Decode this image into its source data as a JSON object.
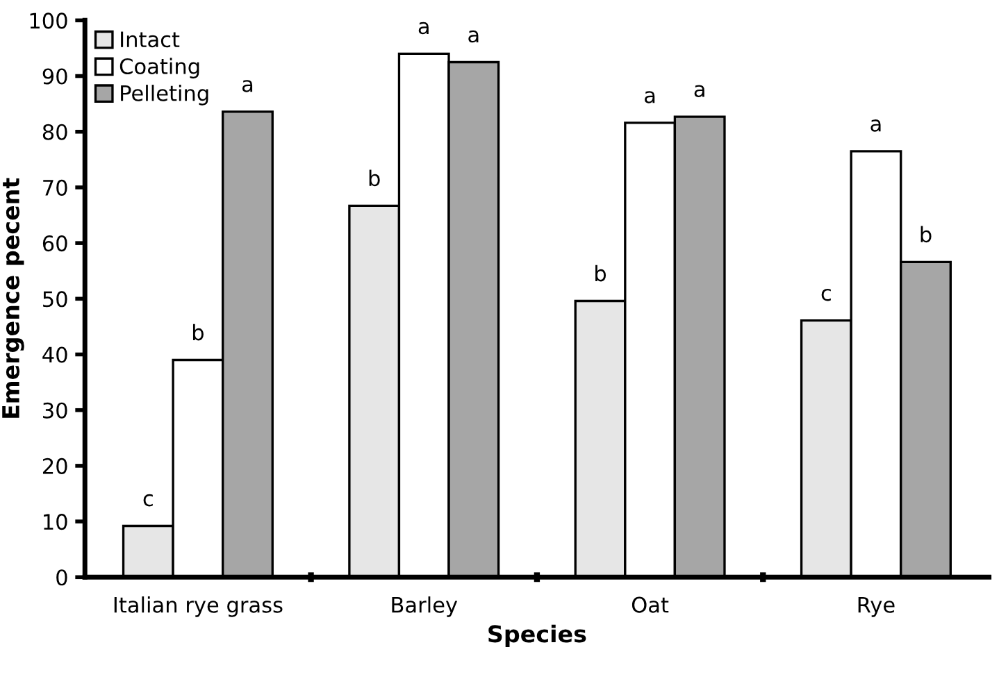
{
  "chart_data": {
    "type": "bar",
    "xlabel": "Species",
    "ylabel": "Emergence pecent",
    "categories": [
      "Italian rye grass",
      "Barley",
      "Oat",
      "Rye"
    ],
    "series": [
      {
        "name": "Intact",
        "color": "#e6e6e6",
        "values": [
          9.2,
          66.7,
          49.6,
          46.1
        ],
        "value_labels": [
          "c",
          "b",
          "b",
          "c"
        ]
      },
      {
        "name": "Coating",
        "color": "#ffffff",
        "values": [
          39.0,
          94.0,
          81.6,
          76.5
        ],
        "value_labels": [
          "b",
          "a",
          "a",
          "a"
        ]
      },
      {
        "name": "Pelleting",
        "color": "#a6a6a6",
        "values": [
          83.6,
          92.5,
          82.7,
          56.6
        ],
        "value_labels": [
          "a",
          "a",
          "a",
          "b"
        ]
      }
    ],
    "ylim": [
      0,
      100
    ],
    "yticks": [
      0,
      10,
      20,
      30,
      40,
      50,
      60,
      70,
      80,
      90,
      100
    ],
    "grid": false,
    "legend": "top left"
  }
}
